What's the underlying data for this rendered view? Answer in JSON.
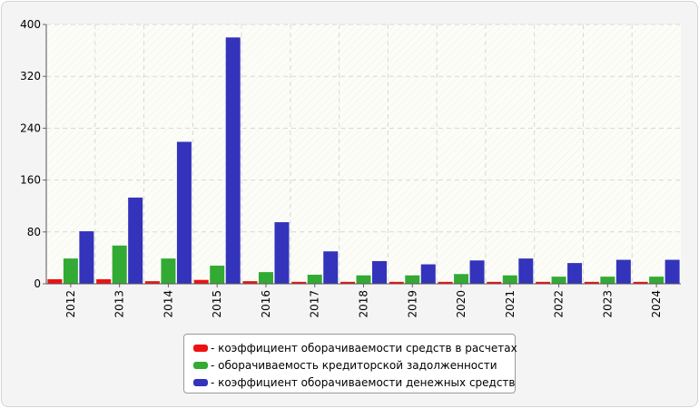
{
  "chart_data": {
    "type": "bar",
    "categories": [
      "2012",
      "2013",
      "2014",
      "2015",
      "2016",
      "2017",
      "2018",
      "2019",
      "2020",
      "2021",
      "2022",
      "2023",
      "2024"
    ],
    "series": [
      {
        "name": "- коэффициент оборачиваемости средств в расчетах",
        "color": "#ee1111",
        "values": [
          7,
          7,
          4,
          6,
          4,
          3,
          3,
          3,
          3,
          3,
          3,
          3,
          3
        ]
      },
      {
        "name": "- оборачиваемость кредиторской задолженности",
        "color": "#33aa33",
        "values": [
          39,
          59,
          39,
          28,
          18,
          14,
          13,
          13,
          15,
          13,
          11,
          11,
          11
        ]
      },
      {
        "name": "- коэффициент оборачиваемости денежных средств",
        "color": "#3333bb",
        "values": [
          81,
          133,
          219,
          380,
          95,
          50,
          35,
          30,
          36,
          39,
          32,
          37,
          37
        ]
      }
    ],
    "title": "",
    "xlabel": "",
    "ylabel": "",
    "ylim": [
      0,
      400
    ],
    "yticks": [
      0,
      80,
      160,
      240,
      320,
      400
    ],
    "grid": true,
    "legend_position": "bottom"
  }
}
